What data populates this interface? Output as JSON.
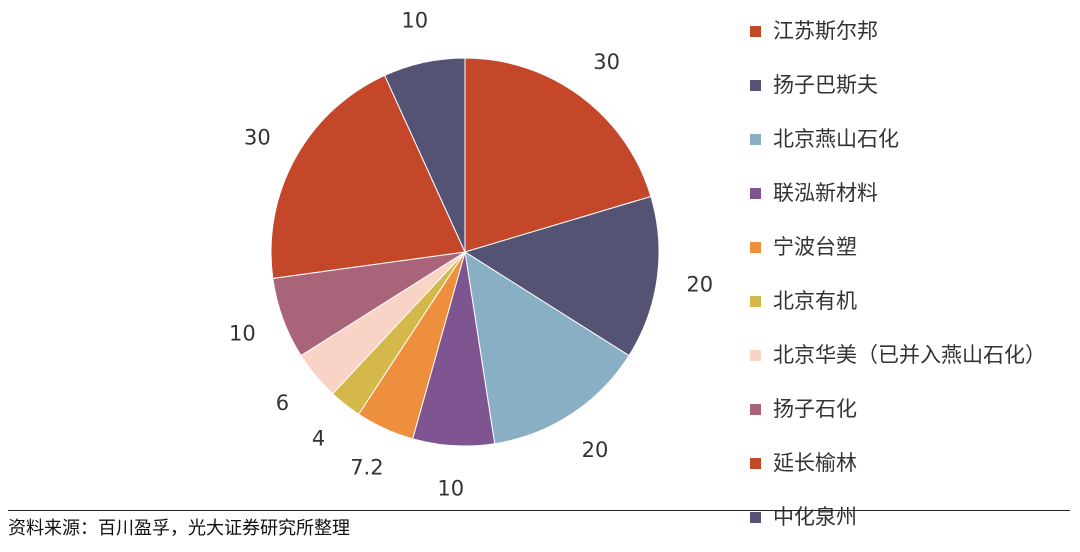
{
  "chart_data": {
    "type": "pie",
    "start_angle": 0,
    "direction": "clockwise",
    "slices": [
      {
        "name": "江苏斯尔邦",
        "value": 30,
        "label": "30",
        "color": "#C4472A"
      },
      {
        "name": "扬子巴斯夫",
        "value": 20,
        "label": "20",
        "color": "#545374"
      },
      {
        "name": "北京燕山石化",
        "value": 20,
        "label": "20",
        "color": "#89AFC4"
      },
      {
        "name": "联泓新材料",
        "value": 10,
        "label": "10",
        "color": "#7E5491"
      },
      {
        "name": "宁波台塑",
        "value": 7.2,
        "label": "7.2",
        "color": "#EE8F3D"
      },
      {
        "name": "北京有机",
        "value": 4,
        "label": "4",
        "color": "#D4B84A"
      },
      {
        "name": "北京华美（已并入燕山石化）",
        "value": 6,
        "label": "6",
        "color": "#F8D3C6"
      },
      {
        "name": "扬子石化",
        "value": 10,
        "label": "10",
        "color": "#A96479"
      },
      {
        "name": "延长榆林",
        "value": 30,
        "label": "30",
        "color": "#C4472A"
      },
      {
        "name": "中化泉州",
        "value": 10,
        "label": "10",
        "color": "#545374"
      }
    ],
    "legend_position": "right"
  },
  "legend": [
    {
      "label": "江苏斯尔邦",
      "color": "#C4472A"
    },
    {
      "label": "扬子巴斯夫",
      "color": "#545374"
    },
    {
      "label": "北京燕山石化",
      "color": "#89AFC4"
    },
    {
      "label": "联泓新材料",
      "color": "#7E5491"
    },
    {
      "label": "宁波台塑",
      "color": "#EE8F3D"
    },
    {
      "label": "北京有机",
      "color": "#D4B84A"
    },
    {
      "label": "北京华美（已并入燕山石化）",
      "color": "#F8D3C6"
    },
    {
      "label": "扬子石化",
      "color": "#A96479"
    },
    {
      "label": "延长榆林",
      "color": "#C4472A"
    },
    {
      "label": "中化泉州",
      "color": "#545374"
    }
  ],
  "source": "资料来源：百川盈孚，光大证券研究所整理"
}
